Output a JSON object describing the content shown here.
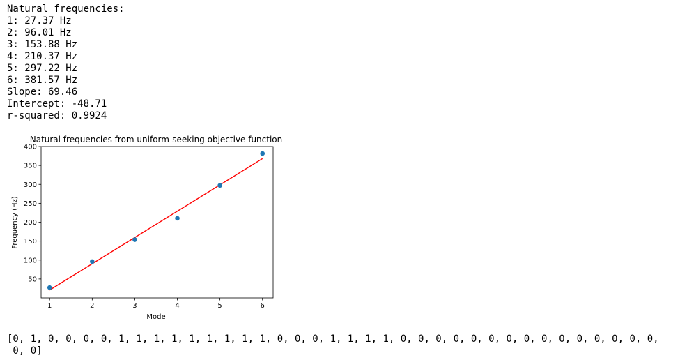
{
  "output_top": {
    "lines": [
      "Natural frequencies:",
      "1: 27.37 Hz",
      "2: 96.01 Hz",
      "3: 153.88 Hz",
      "4: 210.37 Hz",
      "5: 297.22 Hz",
      "6: 381.57 Hz",
      "Slope: 69.46",
      "Intercept: -48.71",
      "r-squared: 0.9924"
    ]
  },
  "output_bottom": {
    "lines": [
      "[0, 1, 0, 0, 0, 0, 1, 1, 1, 1, 1, 1, 1, 1, 1, 0, 0, 0, 1, 1, 1, 1, 0, 0, 0, 0, 0, 0, 0, 0, 0, 0, 0, 0, 0, 0, 0,",
      " 0, 0]"
    ]
  },
  "chart_data": {
    "type": "scatter",
    "title": "Natural frequencies from uniform-seeking objective function",
    "xlabel": "Mode",
    "ylabel": "Frequency (Hz)",
    "xlim": [
      0.8,
      6.25
    ],
    "ylim": [
      0,
      400
    ],
    "xticks": [
      1,
      2,
      3,
      4,
      5,
      6
    ],
    "yticks": [
      50,
      100,
      150,
      200,
      250,
      300,
      350,
      400
    ],
    "series": [
      {
        "kind": "scatter",
        "color": "#1f77b4",
        "x": [
          1,
          2,
          3,
          4,
          5,
          6
        ],
        "y": [
          27.37,
          96.01,
          153.88,
          210.37,
          297.22,
          381.57
        ]
      },
      {
        "kind": "line",
        "color": "#ff0000",
        "x": [
          1,
          6
        ],
        "y": [
          20.75,
          368.05
        ]
      }
    ]
  }
}
